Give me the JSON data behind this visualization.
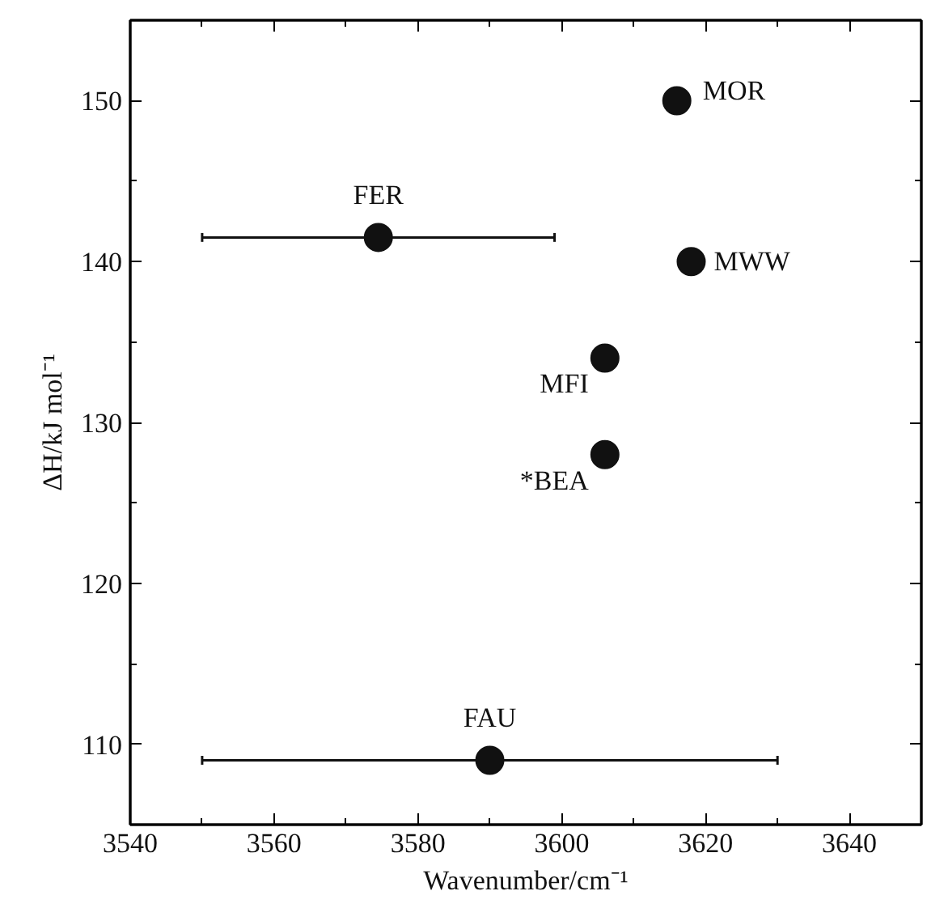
{
  "chart_data": {
    "type": "scatter",
    "xlabel": "Wavenumber/cm⁻¹",
    "ylabel": "ΔH/kJ mol⁻¹",
    "x": [
      3616,
      3574.5,
      3618,
      3606,
      3606,
      3590
    ],
    "series": [
      {
        "color": "#111111",
        "values": [
          150,
          141.5,
          140,
          134,
          128,
          109
        ],
        "xerrors": [
          null,
          24.5,
          null,
          null,
          null,
          40
        ]
      }
    ],
    "xlim": [
      3540,
      3650
    ],
    "ylim": [
      105,
      155
    ],
    "xticks": [
      3540,
      3560,
      3580,
      3600,
      3620,
      3640
    ],
    "yticks": [
      110,
      120,
      130,
      140,
      150
    ],
    "marker": "circle",
    "grid": false,
    "annotations": [
      {
        "text": "MOR",
        "x": 3616,
        "y": 150
      },
      {
        "text": "FER",
        "x": 3574.5,
        "y": 141.5
      },
      {
        "text": "MWW",
        "x": 3618,
        "y": 140
      },
      {
        "text": "MFI",
        "x": 3606,
        "y": 134
      },
      {
        "text": "*BEA",
        "x": 3606,
        "y": 128
      },
      {
        "text": "FAU",
        "x": 3590,
        "y": 109
      }
    ]
  }
}
